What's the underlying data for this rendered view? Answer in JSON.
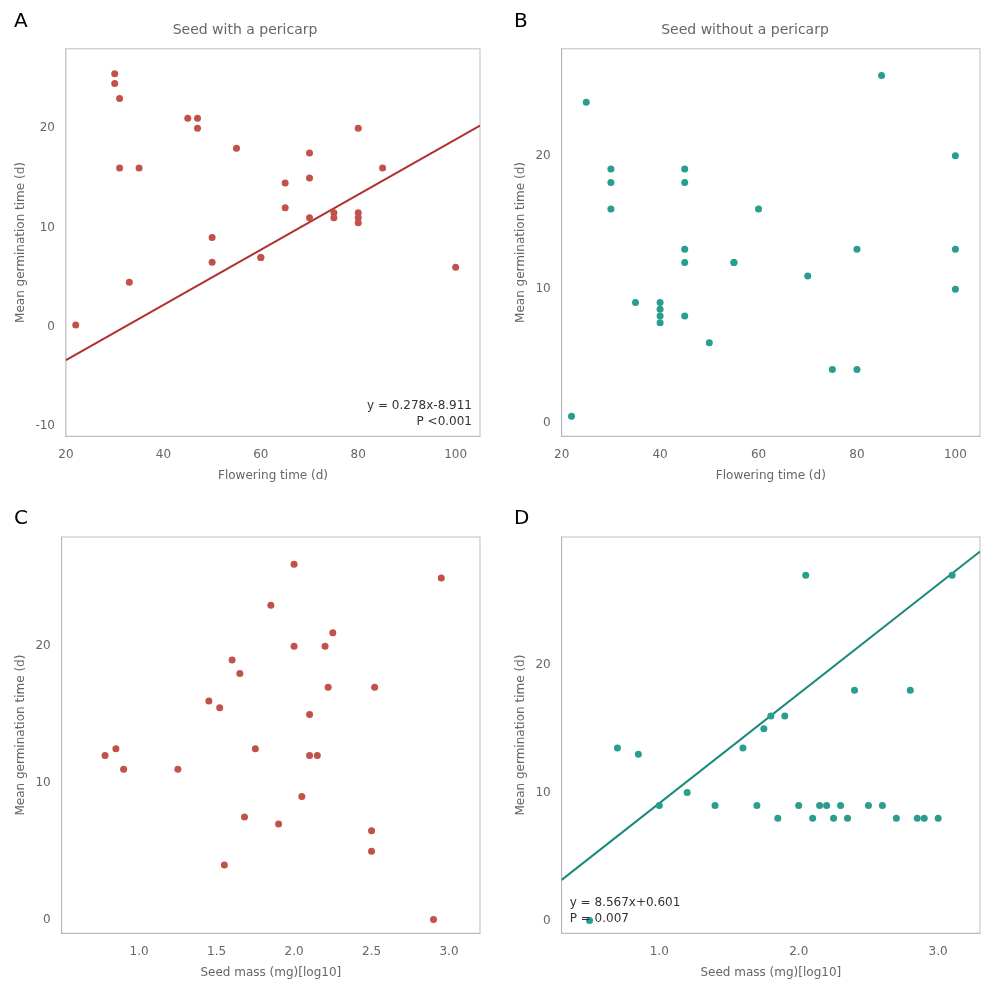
{
  "chart_data": [
    {
      "type": "scatter",
      "title": "Seed with a pericarp",
      "annotations": [
        "A",
        "y = 0.278x-8.911",
        "P <0.001"
      ],
      "x_label": "Flowering time (d)",
      "y_label": "Mean germination time (d)",
      "xlim": [
        20,
        105
      ],
      "ylim": [
        -11,
        28
      ],
      "xticks": [
        20,
        40,
        60,
        80,
        100
      ],
      "yticks": [
        -10,
        0,
        10,
        20
      ],
      "grid": false,
      "series": [
        {
          "type": "scatter",
          "color": "#c0524a",
          "x": [
            22,
            30,
            30,
            31,
            31,
            33,
            35,
            45,
            47,
            47,
            50,
            50,
            55,
            60,
            60,
            65,
            65,
            70,
            70,
            70,
            75,
            75,
            80,
            80,
            80,
            80,
            85,
            100
          ],
          "values": [
            0.2,
            25.5,
            24.5,
            23,
            16,
            4.5,
            16,
            21,
            21,
            20,
            9,
            6.5,
            18,
            7,
            7,
            14.5,
            12,
            17.5,
            15,
            11,
            11,
            11.5,
            20,
            11.5,
            11,
            10.5,
            16,
            6
          ]
        },
        {
          "type": "line",
          "color": "#b03030",
          "x": [
            20,
            105
          ],
          "values": [
            -3.351,
            20.279
          ]
        }
      ]
    },
    {
      "type": "scatter",
      "title": "Seed without a pericarp",
      "annotations": [
        "B"
      ],
      "x_label": "Flowering time (d)",
      "y_label": "Mean germination time (d)",
      "xlim": [
        20,
        105
      ],
      "ylim": [
        -1,
        28
      ],
      "xticks": [
        20,
        40,
        60,
        80,
        100
      ],
      "yticks": [
        0,
        10,
        20
      ],
      "grid": false,
      "series": [
        {
          "type": "scatter",
          "color": "#2a9d8f",
          "x": [
            22,
            25,
            30,
            30,
            30,
            35,
            40,
            40,
            40,
            40,
            45,
            45,
            45,
            45,
            45,
            50,
            55,
            55,
            60,
            70,
            75,
            80,
            80,
            85,
            100,
            100,
            100
          ],
          "values": [
            0.5,
            24,
            19,
            18,
            16,
            9,
            9,
            8.5,
            8,
            7.5,
            19,
            18,
            13,
            12,
            8,
            6,
            12,
            12,
            16,
            11,
            4,
            4,
            13,
            26,
            20,
            13,
            10
          ]
        }
      ]
    },
    {
      "type": "scatter",
      "annotations": [
        "C"
      ],
      "x_label": "Seed mass (mg)[log10]",
      "y_label": "Mean germination time (d)",
      "xlim": [
        0.5,
        3.2
      ],
      "ylim": [
        -1,
        28
      ],
      "xticks": [
        {
          "value": 1,
          "label": "1.0"
        },
        1.5,
        {
          "value": 2,
          "label": "2.0"
        },
        2.5,
        {
          "value": 3,
          "label": "3.0"
        }
      ],
      "yticks": [
        0,
        10,
        20
      ],
      "grid": false,
      "series": [
        {
          "type": "scatter",
          "color": "#c0524a",
          "x": [
            0.78,
            0.85,
            0.9,
            1.25,
            1.45,
            1.52,
            1.55,
            1.6,
            1.65,
            1.68,
            1.75,
            1.85,
            1.9,
            2.0,
            2.0,
            2.05,
            2.1,
            2.1,
            2.15,
            2.2,
            2.22,
            2.25,
            2.5,
            2.5,
            2.52,
            2.9,
            2.95
          ],
          "values": [
            12,
            12.5,
            11,
            11,
            16,
            15.5,
            4,
            19,
            18,
            7.5,
            12.5,
            23,
            7,
            26,
            20,
            9,
            15,
            12,
            12,
            20,
            17,
            21,
            5,
            6.5,
            17,
            0,
            25
          ]
        }
      ]
    },
    {
      "type": "scatter",
      "annotations": [
        "D",
        "y = 8.567x+0.601",
        "P = 0.007"
      ],
      "x_label": "Seed mass (mg)[log10]",
      "y_label": "Mean germination time (d)",
      "xlim": [
        0.3,
        3.3
      ],
      "ylim": [
        -1,
        30
      ],
      "xticks": [
        {
          "value": 1,
          "label": "1.0"
        },
        {
          "value": 2,
          "label": "2.0"
        },
        {
          "value": 3,
          "label": "3.0"
        }
      ],
      "yticks": [
        0,
        10,
        20
      ],
      "grid": false,
      "series": [
        {
          "type": "scatter",
          "color": "#2a9d8f",
          "x": [
            0.5,
            0.7,
            0.85,
            1.0,
            1.2,
            1.4,
            1.6,
            1.7,
            1.75,
            1.8,
            1.85,
            1.9,
            2.0,
            2.05,
            2.1,
            2.15,
            2.2,
            2.25,
            2.3,
            2.35,
            2.4,
            2.5,
            2.6,
            2.7,
            2.8,
            2.85,
            2.9,
            3.0,
            3.1
          ],
          "values": [
            0,
            13.5,
            13,
            9,
            10,
            9,
            13.5,
            9,
            15,
            16,
            8,
            16,
            9,
            27,
            8,
            9,
            9,
            8,
            9,
            8,
            18,
            9,
            9,
            8,
            18,
            8,
            8,
            8,
            27
          ]
        },
        {
          "type": "line",
          "color": "#1a8a7d",
          "x": [
            0.3,
            3.3
          ],
          "values": [
            3.1711,
            28.8721
          ]
        }
      ]
    }
  ]
}
